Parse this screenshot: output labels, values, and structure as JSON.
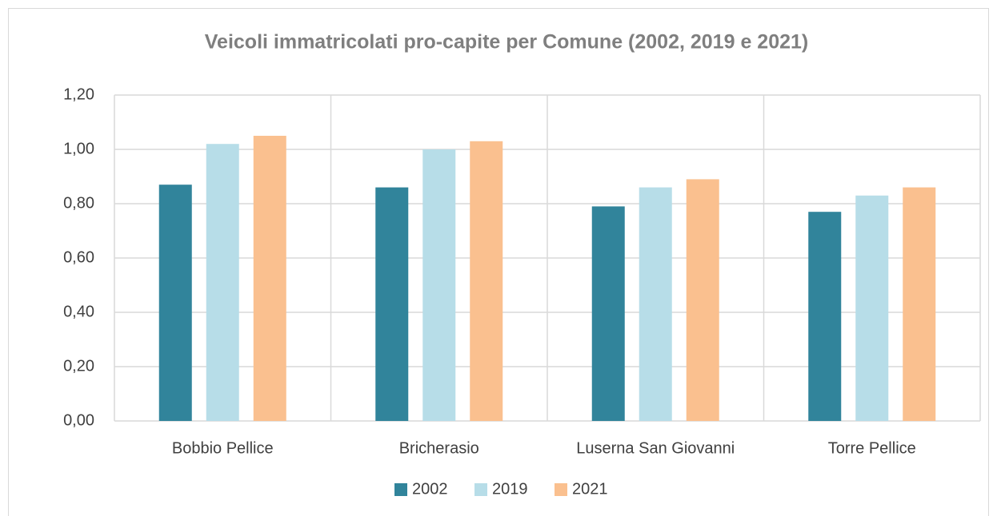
{
  "chart_data": {
    "type": "bar",
    "title": "Veicoli immatricolati pro-capite per Comune (2002, 2019 e 2021)",
    "categories": [
      "Bobbio Pellice",
      "Bricherasio",
      "Luserna San Giovanni",
      "Torre Pellice"
    ],
    "series": [
      {
        "name": "2002",
        "color": "#31849b",
        "values": [
          0.87,
          0.86,
          0.79,
          0.77
        ]
      },
      {
        "name": "2019",
        "color": "#b7dde8",
        "values": [
          1.02,
          1.0,
          0.86,
          0.83
        ]
      },
      {
        "name": "2021",
        "color": "#fac08f",
        "values": [
          1.05,
          1.03,
          0.89,
          0.86
        ]
      }
    ],
    "ylim": [
      0,
      1.2
    ],
    "yticks": [
      {
        "value": 0,
        "label": "0,00"
      },
      {
        "value": 0.2,
        "label": "0,20"
      },
      {
        "value": 0.4,
        "label": "0,40"
      },
      {
        "value": 0.6,
        "label": "0,60"
      },
      {
        "value": 0.8,
        "label": "0,80"
      },
      {
        "value": 1.0,
        "label": "1,00"
      },
      {
        "value": 1.2,
        "label": "1,20"
      }
    ],
    "grid": true,
    "legend": "bottom"
  }
}
